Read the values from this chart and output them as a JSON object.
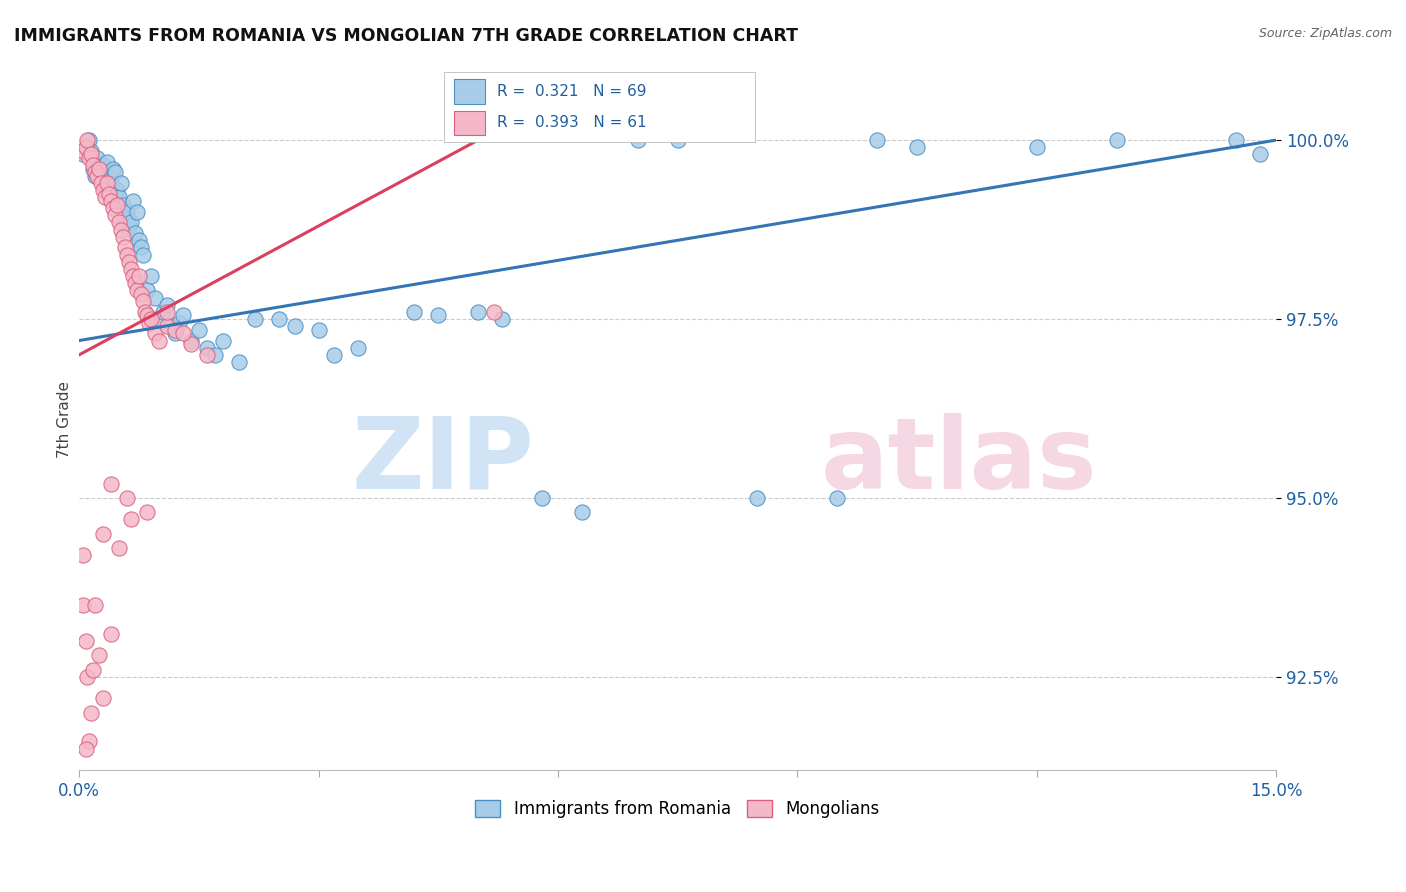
{
  "title": "IMMIGRANTS FROM ROMANIA VS MONGOLIAN 7TH GRADE CORRELATION CHART",
  "source": "Source: ZipAtlas.com",
  "ylabel": "7th Grade",
  "ytick_labels": [
    "92.5%",
    "95.0%",
    "97.5%",
    "100.0%"
  ],
  "ytick_values": [
    92.5,
    95.0,
    97.5,
    100.0
  ],
  "xmin": 0.0,
  "xmax": 15.0,
  "ymin": 91.2,
  "ymax": 101.0,
  "legend_blue_label": "Immigrants from Romania",
  "legend_pink_label": "Mongolians",
  "blue_color": "#a8cce8",
  "pink_color": "#f4b8c8",
  "blue_edge_color": "#4a90c4",
  "pink_edge_color": "#d96080",
  "blue_line_color": "#3575b5",
  "pink_line_color": "#d94060",
  "axis_label_color": "#2060a0",
  "title_color": "#111111",
  "source_color": "#666666",
  "blue_scatter": [
    [
      0.05,
      99.8
    ],
    [
      0.1,
      99.9
    ],
    [
      0.12,
      100.0
    ],
    [
      0.15,
      99.85
    ],
    [
      0.18,
      99.6
    ],
    [
      0.2,
      99.5
    ],
    [
      0.22,
      99.75
    ],
    [
      0.25,
      99.55
    ],
    [
      0.27,
      99.45
    ],
    [
      0.3,
      99.65
    ],
    [
      0.32,
      99.35
    ],
    [
      0.35,
      99.7
    ],
    [
      0.38,
      99.5
    ],
    [
      0.4,
      99.4
    ],
    [
      0.42,
      99.6
    ],
    [
      0.45,
      99.55
    ],
    [
      0.48,
      99.3
    ],
    [
      0.5,
      99.2
    ],
    [
      0.52,
      99.4
    ],
    [
      0.55,
      99.1
    ],
    [
      0.58,
      98.9
    ],
    [
      0.6,
      99.0
    ],
    [
      0.62,
      98.8
    ],
    [
      0.65,
      98.85
    ],
    [
      0.68,
      99.15
    ],
    [
      0.7,
      98.7
    ],
    [
      0.72,
      99.0
    ],
    [
      0.75,
      98.6
    ],
    [
      0.78,
      98.5
    ],
    [
      0.8,
      98.4
    ],
    [
      0.85,
      97.9
    ],
    [
      0.9,
      98.1
    ],
    [
      0.95,
      97.8
    ],
    [
      1.0,
      97.5
    ],
    [
      1.05,
      97.6
    ],
    [
      1.1,
      97.7
    ],
    [
      1.15,
      97.4
    ],
    [
      1.2,
      97.3
    ],
    [
      1.25,
      97.45
    ],
    [
      1.3,
      97.55
    ],
    [
      1.4,
      97.2
    ],
    [
      1.5,
      97.35
    ],
    [
      1.6,
      97.1
    ],
    [
      1.7,
      97.0
    ],
    [
      1.8,
      97.2
    ],
    [
      2.0,
      96.9
    ],
    [
      2.2,
      97.5
    ],
    [
      2.5,
      97.5
    ],
    [
      2.7,
      97.4
    ],
    [
      3.0,
      97.35
    ],
    [
      3.2,
      97.0
    ],
    [
      3.5,
      97.1
    ],
    [
      4.2,
      97.6
    ],
    [
      4.5,
      97.55
    ],
    [
      5.0,
      97.6
    ],
    [
      5.3,
      97.5
    ],
    [
      5.8,
      95.0
    ],
    [
      6.3,
      94.8
    ],
    [
      8.5,
      95.0
    ],
    [
      9.5,
      95.0
    ],
    [
      7.0,
      100.0
    ],
    [
      7.5,
      100.0
    ],
    [
      10.0,
      100.0
    ],
    [
      10.5,
      99.9
    ],
    [
      12.0,
      99.9
    ],
    [
      13.0,
      100.0
    ],
    [
      14.5,
      100.0
    ],
    [
      14.8,
      99.8
    ]
  ],
  "pink_scatter": [
    [
      0.05,
      99.85
    ],
    [
      0.08,
      99.9
    ],
    [
      0.1,
      100.0
    ],
    [
      0.12,
      99.75
    ],
    [
      0.15,
      99.8
    ],
    [
      0.18,
      99.65
    ],
    [
      0.2,
      99.55
    ],
    [
      0.22,
      99.5
    ],
    [
      0.25,
      99.6
    ],
    [
      0.27,
      99.4
    ],
    [
      0.3,
      99.3
    ],
    [
      0.32,
      99.2
    ],
    [
      0.35,
      99.4
    ],
    [
      0.38,
      99.25
    ],
    [
      0.4,
      99.15
    ],
    [
      0.42,
      99.05
    ],
    [
      0.45,
      98.95
    ],
    [
      0.48,
      99.1
    ],
    [
      0.5,
      98.85
    ],
    [
      0.52,
      98.75
    ],
    [
      0.55,
      98.65
    ],
    [
      0.58,
      98.5
    ],
    [
      0.6,
      98.4
    ],
    [
      0.62,
      98.3
    ],
    [
      0.65,
      98.2
    ],
    [
      0.68,
      98.1
    ],
    [
      0.7,
      98.0
    ],
    [
      0.72,
      97.9
    ],
    [
      0.75,
      98.1
    ],
    [
      0.78,
      97.85
    ],
    [
      0.8,
      97.75
    ],
    [
      0.82,
      97.6
    ],
    [
      0.85,
      97.55
    ],
    [
      0.88,
      97.45
    ],
    [
      0.9,
      97.5
    ],
    [
      0.95,
      97.3
    ],
    [
      1.0,
      97.2
    ],
    [
      1.1,
      97.4
    ],
    [
      1.2,
      97.35
    ],
    [
      1.4,
      97.15
    ],
    [
      1.6,
      97.0
    ],
    [
      0.05,
      93.5
    ],
    [
      0.1,
      92.5
    ],
    [
      0.12,
      91.6
    ],
    [
      0.18,
      92.6
    ],
    [
      0.3,
      92.2
    ],
    [
      0.65,
      94.7
    ],
    [
      0.85,
      94.8
    ],
    [
      1.1,
      97.6
    ],
    [
      1.3,
      97.3
    ],
    [
      0.3,
      94.5
    ],
    [
      0.4,
      95.2
    ],
    [
      5.2,
      97.6
    ],
    [
      0.08,
      91.5
    ],
    [
      0.15,
      92.0
    ],
    [
      0.25,
      92.8
    ],
    [
      0.4,
      93.1
    ],
    [
      0.05,
      94.2
    ],
    [
      0.5,
      94.3
    ],
    [
      0.08,
      93.0
    ],
    [
      0.6,
      95.0
    ],
    [
      0.2,
      93.5
    ]
  ],
  "blue_trend_x": [
    0.0,
    15.0
  ],
  "blue_trend_y": [
    97.2,
    100.0
  ],
  "pink_trend_x": [
    0.0,
    5.5
  ],
  "pink_trend_y": [
    97.0,
    100.3
  ]
}
